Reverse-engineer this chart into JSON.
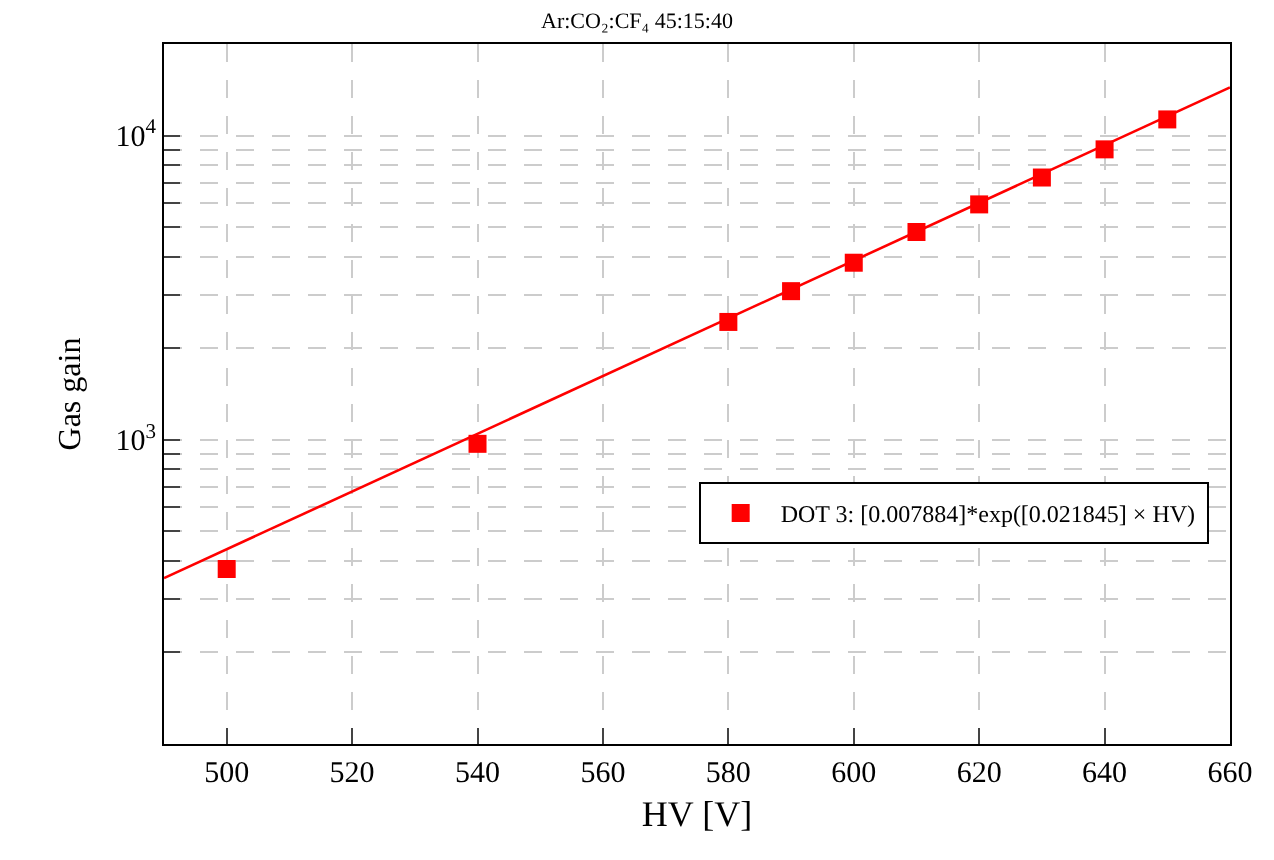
{
  "chart_data": {
    "type": "scatter",
    "title": "Ar:CO₂:CF₄ 45:15:40",
    "xlabel": "HV [V]",
    "ylabel": "Gas gain",
    "xlim": [
      490,
      660
    ],
    "xticks": [
      500,
      520,
      540,
      560,
      580,
      600,
      620,
      640,
      660
    ],
    "ylim": [
      100,
      20000
    ],
    "yticks": [
      {
        "value": 200,
        "label": null
      },
      {
        "value": 300,
        "label": null
      },
      {
        "value": 400,
        "label": null
      },
      {
        "value": 500,
        "label": null
      },
      {
        "value": 600,
        "label": null
      },
      {
        "value": 700,
        "label": null
      },
      {
        "value": 800,
        "label": null
      },
      {
        "value": 900,
        "label": null
      },
      {
        "value": 1000,
        "label": "10$^{3}$"
      },
      {
        "value": 2000,
        "label": null
      },
      {
        "value": 3000,
        "label": null
      },
      {
        "value": 4000,
        "label": null
      },
      {
        "value": 5000,
        "label": null
      },
      {
        "value": 6000,
        "label": null
      },
      {
        "value": 7000,
        "label": null
      },
      {
        "value": 8000,
        "label": null
      },
      {
        "value": 9000,
        "label": null
      },
      {
        "value": 10000,
        "label": "10$^{4}$"
      }
    ],
    "log": "y",
    "grid": true,
    "legend": "right",
    "line_style": "solid",
    "series": [
      {
        "marker": "square",
        "name": "DOT 3: [0.007884]*exp([0.021845] × HV)",
        "color": "#ff0000",
        "x": [
          500,
          540,
          580,
          590,
          600,
          610,
          620,
          630,
          640,
          650
        ],
        "values": [
          376,
          970,
          2440,
          3080,
          3820,
          4820,
          5940,
          7280,
          9010,
          11300
        ]
      },
      {
        "type": "line",
        "marker": "none",
        "color": "#ff0000",
        "x": [
          490,
          660
        ],
        "values": [
          351,
          14400
        ]
      }
    ]
  }
}
